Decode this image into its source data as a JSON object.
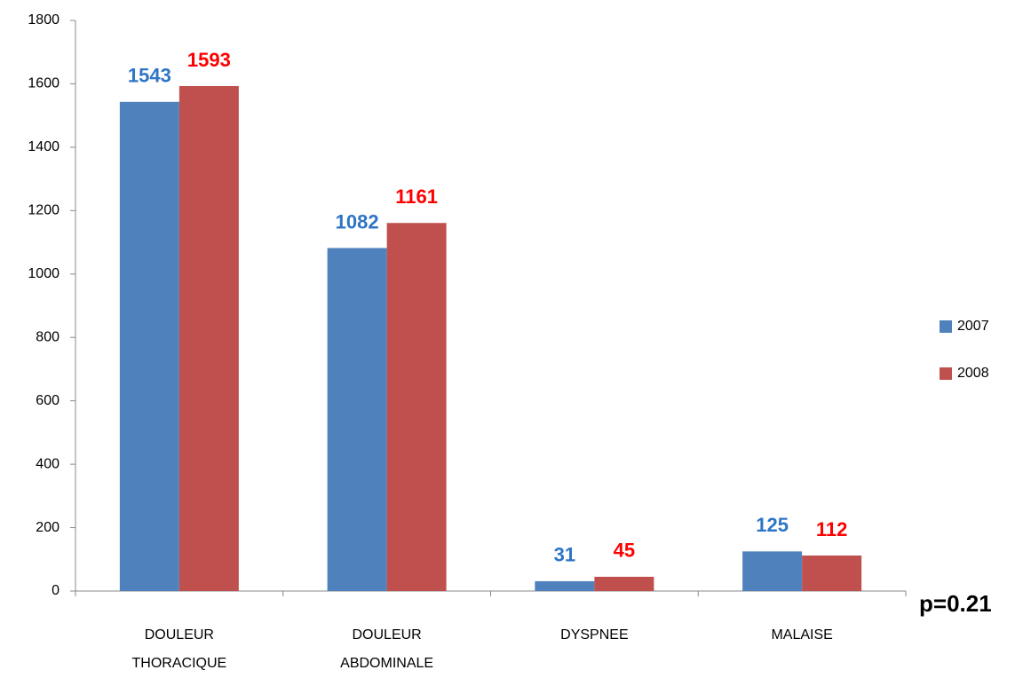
{
  "chart_data": {
    "type": "bar",
    "categories": [
      "DOULEUR\nTHORACIQUE",
      "DOULEUR\nABDOMINALE",
      "DYSPNEE",
      "MALAISE"
    ],
    "series": [
      {
        "name": "2007",
        "color": "#4f81bd",
        "label_color": "#2e75c6",
        "values": [
          1543,
          1082,
          31,
          125
        ]
      },
      {
        "name": "2008",
        "color": "#c0504d",
        "label_color": "#ff0000",
        "values": [
          1593,
          1161,
          45,
          112
        ]
      }
    ],
    "ylim": [
      0,
      1800
    ],
    "yticks": [
      0,
      200,
      400,
      600,
      800,
      1000,
      1200,
      1400,
      1600,
      1800
    ],
    "grid": false,
    "legend": "right",
    "annotation": "p=0.21"
  }
}
